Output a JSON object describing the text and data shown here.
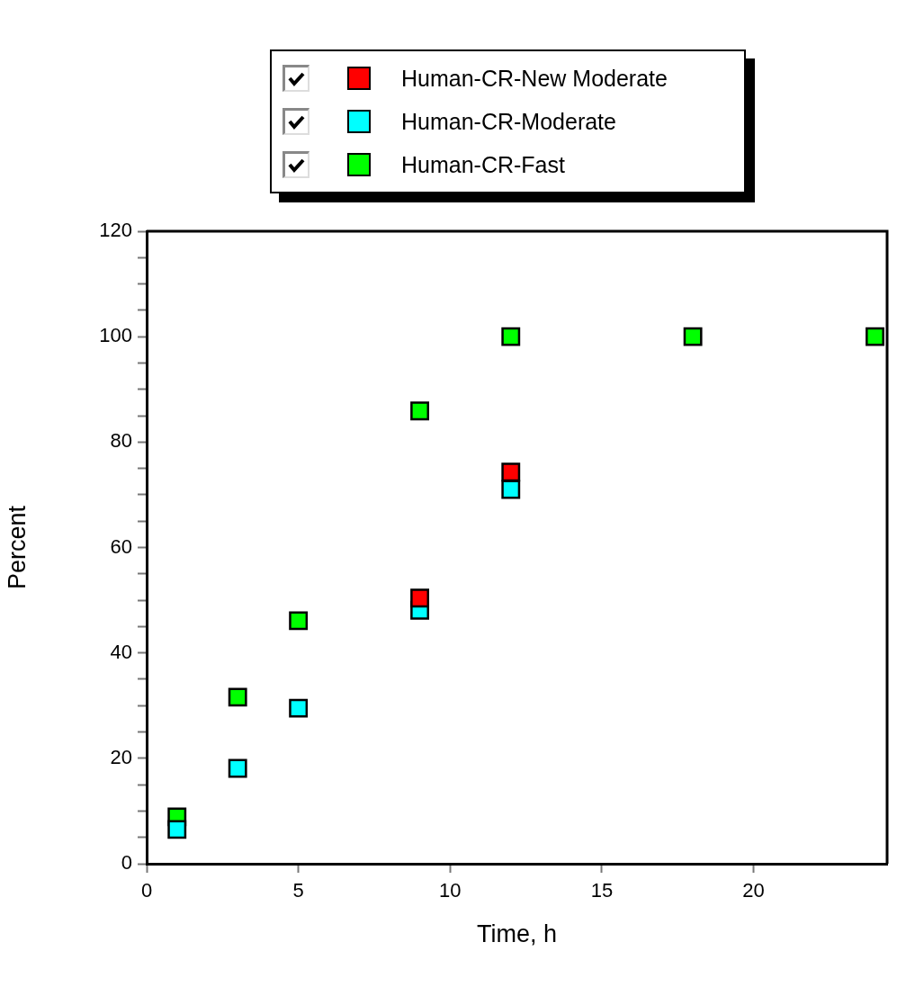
{
  "chart_data": {
    "type": "scatter",
    "xlabel": "Time, h",
    "ylabel": "Percent",
    "xlim": [
      0,
      24.4
    ],
    "xticks": [
      0,
      5,
      10,
      15,
      20
    ],
    "ylim": [
      0,
      120
    ],
    "yticks": [
      0,
      {
        "value": 5,
        "label": null
      },
      {
        "value": 10,
        "label": null
      },
      {
        "value": 15,
        "label": null
      },
      20,
      {
        "value": 25,
        "label": null
      },
      {
        "value": 30,
        "label": null
      },
      {
        "value": 35,
        "label": null
      },
      40,
      {
        "value": 45,
        "label": null
      },
      {
        "value": 50,
        "label": null
      },
      {
        "value": 55,
        "label": null
      },
      60,
      {
        "value": 65,
        "label": null
      },
      {
        "value": 70,
        "label": null
      },
      {
        "value": 75,
        "label": null
      },
      80,
      {
        "value": 85,
        "label": null
      },
      {
        "value": 90,
        "label": null
      },
      {
        "value": 95,
        "label": null
      },
      100,
      {
        "value": 105,
        "label": null
      },
      {
        "value": 110,
        "label": null
      },
      {
        "value": 115,
        "label": null
      },
      120
    ],
    "marker": "square",
    "grid": false,
    "legend": "top",
    "series": [
      {
        "name": "Human-CR-New Moderate",
        "color": "#ff0000",
        "x": [
          9,
          12
        ],
        "values": [
          50.4,
          74.3
        ]
      },
      {
        "name": "Human-CR-Moderate",
        "color": "#00ffff",
        "x": [
          1,
          3,
          5,
          9,
          12
        ],
        "values": [
          6.5,
          18.1,
          29.5,
          48.1,
          71.0
        ]
      },
      {
        "name": "Human-CR-Fast",
        "color": "#00ff00",
        "x": [
          1,
          3,
          5,
          9,
          12,
          18,
          24
        ],
        "values": [
          8.9,
          31.6,
          46.1,
          85.9,
          100,
          100,
          100
        ]
      }
    ]
  }
}
